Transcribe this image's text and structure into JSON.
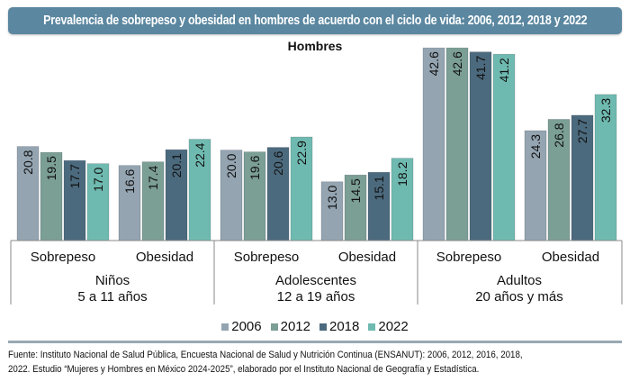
{
  "header": {
    "title": "Prevalencia de sobrepeso y obesidad en hombres de acuerdo con el ciclo de vida: 2006, 2012, 2018 y 2022"
  },
  "chart_data": {
    "type": "bar",
    "title": "Hombres",
    "xlabel": "",
    "ylabel": "",
    "ylim": [
      0,
      45
    ],
    "grid": false,
    "legend_position": "bottom-center",
    "groups": [
      {
        "label_line1": "Niños",
        "label_line2": "5 a 11 años",
        "categories": [
          "Sobrepeso",
          "Obesidad"
        ]
      },
      {
        "label_line1": "Adolescentes",
        "label_line2": "12 a 19 años",
        "categories": [
          "Sobrepeso",
          "Obesidad"
        ]
      },
      {
        "label_line1": "Adultos",
        "label_line2": "20 años y más",
        "categories": [
          "Sobrepeso",
          "Obesidad"
        ]
      }
    ],
    "categories": [
      "Niños - Sobrepeso",
      "Niños - Obesidad",
      "Adolescentes - Sobrepeso",
      "Adolescentes - Obesidad",
      "Adultos - Sobrepeso",
      "Adultos - Obesidad"
    ],
    "series": [
      {
        "name": "2006",
        "color": "#94a4b1",
        "values": [
          20.8,
          16.6,
          20.0,
          13.0,
          42.6,
          24.3
        ]
      },
      {
        "name": "2012",
        "color": "#7b9e95",
        "values": [
          19.5,
          17.4,
          19.6,
          14.5,
          42.6,
          26.8
        ]
      },
      {
        "name": "2018",
        "color": "#4c6a7e",
        "values": [
          17.7,
          20.1,
          20.6,
          15.1,
          41.7,
          27.7
        ]
      },
      {
        "name": "2022",
        "color": "#6fbab0",
        "values": [
          17.0,
          22.4,
          22.9,
          18.2,
          41.2,
          32.3
        ]
      }
    ]
  },
  "legend": [
    {
      "label": "2006",
      "color": "#94a4b1"
    },
    {
      "label": "2012",
      "color": "#7b9e95"
    },
    {
      "label": "2018",
      "color": "#4c6a7e"
    },
    {
      "label": "2022",
      "color": "#6fbab0"
    }
  ],
  "footnote": {
    "line1": "Fuente: Instituto Nacional de Salud Pública, Encuesta Nacional de Salud y Nutrición Continua (ENSANUT): 2006, 2012, 2016, 2018,",
    "line2": "2022. Estudio “Mujeres y Hombres en México 2024-2025”, elaborado por el Instituto Nacional de Geografía y Estadística."
  }
}
